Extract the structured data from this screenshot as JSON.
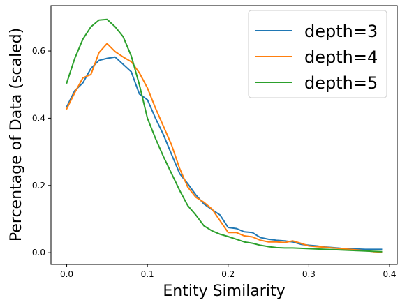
{
  "chart_data": {
    "type": "line",
    "title": "",
    "xlabel": "Entity Similarity",
    "ylabel": "Percentage of Data (scaled)",
    "xlim": [
      -0.0195,
      0.4095
    ],
    "ylim": [
      -0.035,
      0.735
    ],
    "xticks": [
      0.0,
      0.1,
      0.2,
      0.3,
      0.4
    ],
    "xtick_labels": [
      "0.0",
      "0.1",
      "0.2",
      "0.3",
      "0.4"
    ],
    "yticks": [
      0.0,
      0.2,
      0.4,
      0.6
    ],
    "ytick_labels": [
      "0.0",
      "0.2",
      "0.4",
      "0.6"
    ],
    "grid": false,
    "legend_position": "top-right",
    "x": [
      0.0,
      0.01,
      0.02,
      0.03,
      0.04,
      0.05,
      0.06,
      0.07,
      0.08,
      0.09,
      0.1,
      0.11,
      0.12,
      0.13,
      0.14,
      0.15,
      0.16,
      0.17,
      0.18,
      0.19,
      0.2,
      0.21,
      0.22,
      0.23,
      0.24,
      0.25,
      0.26,
      0.27,
      0.28,
      0.29,
      0.3,
      0.31,
      0.32,
      0.33,
      0.34,
      0.35,
      0.36,
      0.37,
      0.38,
      0.39
    ],
    "series": [
      {
        "name": "depth=3",
        "color": "#1f77b4",
        "values": [
          0.434,
          0.482,
          0.505,
          0.548,
          0.572,
          0.578,
          0.582,
          0.56,
          0.538,
          0.472,
          0.455,
          0.4,
          0.35,
          0.292,
          0.235,
          0.205,
          0.172,
          0.145,
          0.128,
          0.112,
          0.075,
          0.072,
          0.062,
          0.06,
          0.045,
          0.04,
          0.037,
          0.035,
          0.032,
          0.025,
          0.022,
          0.02,
          0.017,
          0.015,
          0.013,
          0.012,
          0.011,
          0.01,
          0.01,
          0.01
        ]
      },
      {
        "name": "depth=4",
        "color": "#ff7f0e",
        "values": [
          0.428,
          0.476,
          0.52,
          0.53,
          0.595,
          0.622,
          0.598,
          0.582,
          0.568,
          0.535,
          0.49,
          0.43,
          0.375,
          0.32,
          0.25,
          0.195,
          0.165,
          0.15,
          0.13,
          0.095,
          0.06,
          0.06,
          0.05,
          0.047,
          0.037,
          0.032,
          0.032,
          0.03,
          0.035,
          0.028,
          0.02,
          0.018,
          0.016,
          0.014,
          0.012,
          0.01,
          0.008,
          0.006,
          0.003,
          0.002
        ]
      },
      {
        "name": "depth=5",
        "color": "#2ca02c",
        "values": [
          0.505,
          0.578,
          0.635,
          0.672,
          0.692,
          0.694,
          0.672,
          0.642,
          0.585,
          0.5,
          0.4,
          0.34,
          0.285,
          0.235,
          0.185,
          0.14,
          0.112,
          0.08,
          0.065,
          0.055,
          0.048,
          0.04,
          0.032,
          0.028,
          0.022,
          0.018,
          0.015,
          0.014,
          0.014,
          0.013,
          0.012,
          0.011,
          0.01,
          0.009,
          0.008,
          0.007,
          0.006,
          0.005,
          0.004,
          0.003
        ]
      }
    ]
  }
}
